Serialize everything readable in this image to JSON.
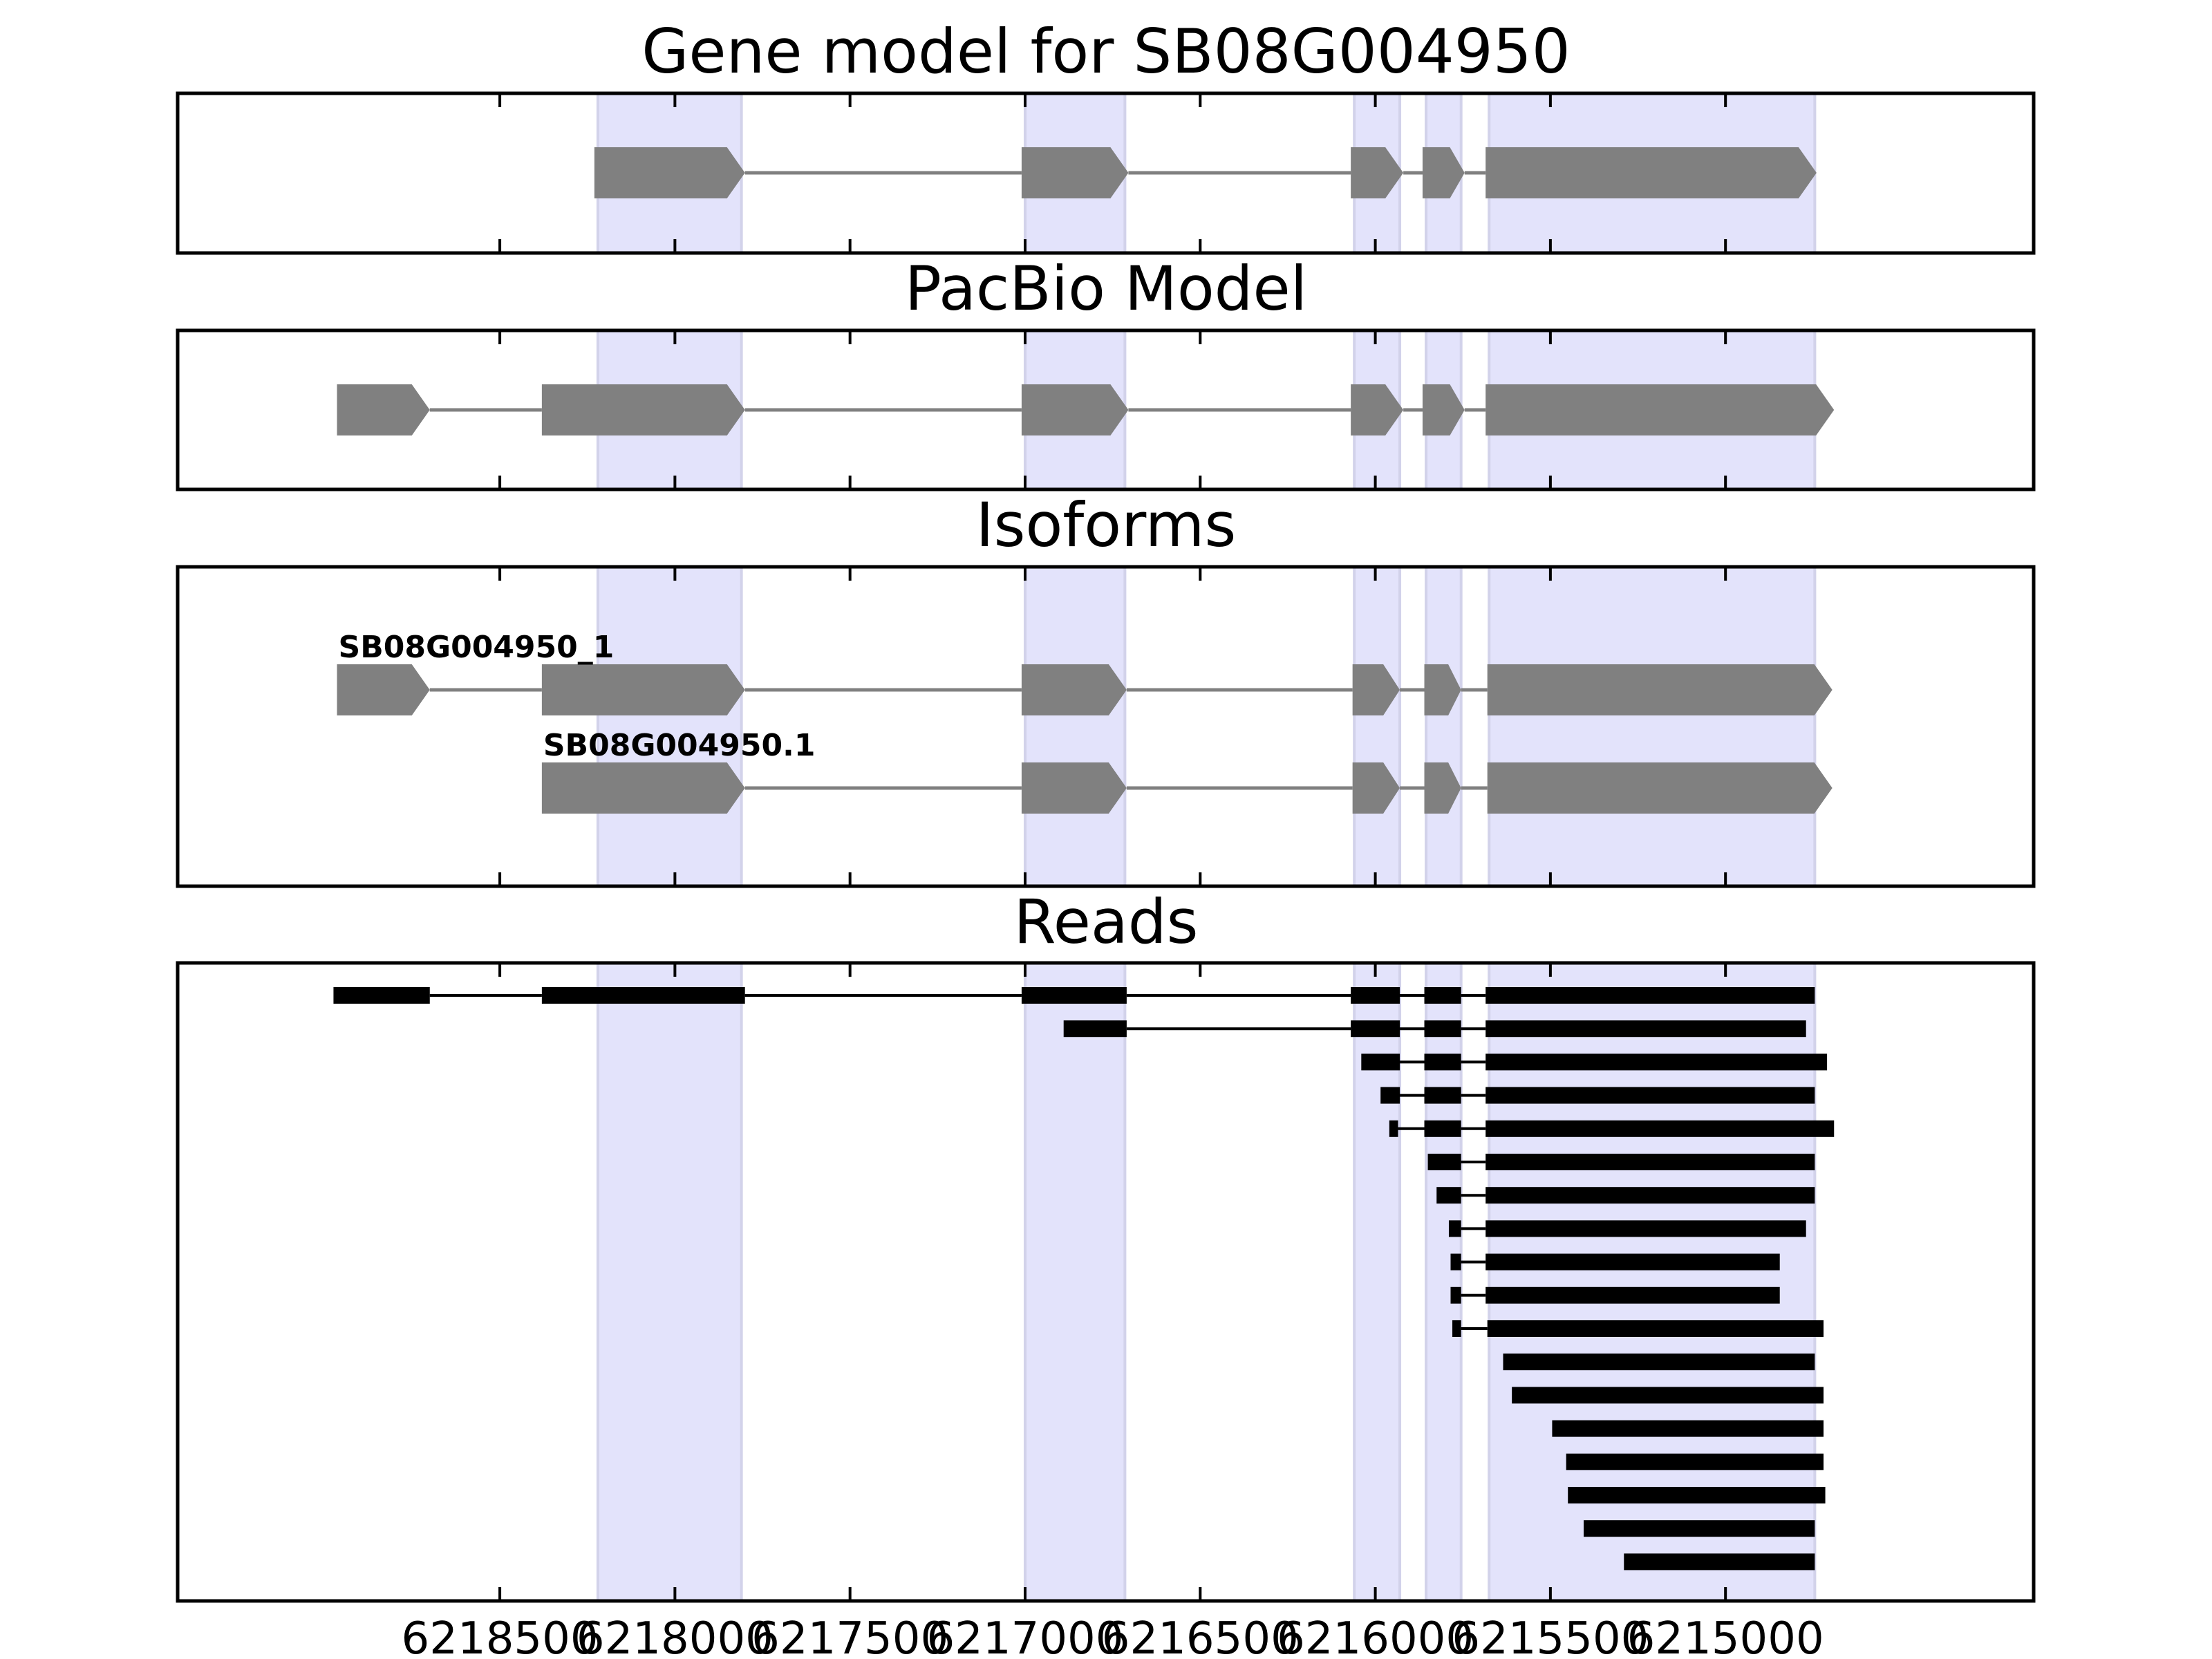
{
  "figure": {
    "colors": {
      "shade": "#e3e3fb",
      "shade_edge": "#d2d2ea",
      "feature": "#808080",
      "read": "#000000",
      "frame": "#000000"
    },
    "x_axis": {
      "range": [
        6219420,
        6214120
      ],
      "reversed": true,
      "ticks": [
        6218500,
        6218000,
        6217500,
        6217000,
        6216500,
        6216000,
        6215500,
        6215000
      ],
      "tick_labels": [
        "6218500",
        "6218000",
        "6217500",
        "6217000",
        "6216500",
        "6216000",
        "6215500",
        "6215000"
      ]
    },
    "shaded_exons": [
      [
        6218220,
        6217810
      ],
      [
        6217000,
        6216715
      ],
      [
        6216060,
        6215930
      ],
      [
        6215855,
        6215755
      ],
      [
        6215675,
        6214745
      ]
    ],
    "panels": [
      {
        "id": "gene-model",
        "title": "Gene model for SB08G004950",
        "style": "arrow",
        "transcripts": [
          {
            "label": "",
            "exons": [
              [
                6218230,
                6217800
              ],
              [
                6217010,
                6216705
              ],
              [
                6216070,
                6215920
              ],
              [
                6215865,
                6215745
              ],
              [
                6215685,
                6214740
              ]
            ]
          }
        ]
      },
      {
        "id": "pacbio-model",
        "title": "PacBio Model",
        "style": "arrow",
        "transcripts": [
          {
            "label": "",
            "exons": [
              [
                6218965,
                6218700
              ],
              [
                6218380,
                6217800
              ],
              [
                6217010,
                6216705
              ],
              [
                6216070,
                6215920
              ],
              [
                6215865,
                6215745
              ],
              [
                6215685,
                6214690
              ]
            ]
          }
        ]
      },
      {
        "id": "isoforms",
        "title": "Isoforms",
        "style": "arrow",
        "transcripts": [
          {
            "label": "SB08G004950_1",
            "exons": [
              [
                6218965,
                6218700
              ],
              [
                6218380,
                6217800
              ],
              [
                6217010,
                6216710
              ],
              [
                6216065,
                6215930
              ],
              [
                6215860,
                6215755
              ],
              [
                6215680,
                6214695
              ]
            ]
          },
          {
            "label": "SB08G004950.1",
            "exons": [
              [
                6218380,
                6217800
              ],
              [
                6217010,
                6216710
              ],
              [
                6216065,
                6215930
              ],
              [
                6215860,
                6215755
              ],
              [
                6215680,
                6214695
              ]
            ]
          }
        ]
      },
      {
        "id": "reads",
        "title": "Reads",
        "style": "bar",
        "transcripts": [
          {
            "label": "",
            "exons": [
              [
                6218975,
                6218700
              ],
              [
                6218380,
                6217800
              ],
              [
                6217010,
                6216710
              ],
              [
                6216070,
                6215930
              ],
              [
                6215860,
                6215755
              ],
              [
                6215685,
                6214745
              ]
            ]
          },
          {
            "label": "",
            "exons": [
              [
                6216890,
                6216710
              ],
              [
                6216070,
                6215930
              ],
              [
                6215860,
                6215755
              ],
              [
                6215685,
                6214770
              ]
            ]
          },
          {
            "label": "",
            "exons": [
              [
                6216040,
                6215930
              ],
              [
                6215860,
                6215755
              ],
              [
                6215685,
                6214710
              ]
            ]
          },
          {
            "label": "",
            "exons": [
              [
                6215985,
                6215930
              ],
              [
                6215860,
                6215755
              ],
              [
                6215685,
                6214745
              ]
            ]
          },
          {
            "label": "",
            "exons": [
              [
                6215960,
                6215935
              ],
              [
                6215860,
                6215755
              ],
              [
                6215685,
                6214690
              ]
            ]
          },
          {
            "label": "",
            "exons": [
              [
                6215850,
                6215755
              ],
              [
                6215685,
                6214745
              ]
            ]
          },
          {
            "label": "",
            "exons": [
              [
                6215825,
                6215755
              ],
              [
                6215685,
                6214745
              ]
            ]
          },
          {
            "label": "",
            "exons": [
              [
                6215790,
                6215755
              ],
              [
                6215685,
                6214770
              ]
            ]
          },
          {
            "label": "",
            "exons": [
              [
                6215785,
                6215755
              ],
              [
                6215685,
                6214845
              ]
            ]
          },
          {
            "label": "",
            "exons": [
              [
                6215785,
                6215755
              ],
              [
                6215685,
                6214845
              ]
            ]
          },
          {
            "label": "",
            "exons": [
              [
                6215780,
                6215755
              ],
              [
                6215680,
                6214720
              ]
            ]
          },
          {
            "label": "",
            "exons": [
              [
                6215635,
                6214745
              ]
            ]
          },
          {
            "label": "",
            "exons": [
              [
                6215610,
                6214720
              ]
            ]
          },
          {
            "label": "",
            "exons": [
              [
                6215495,
                6214720
              ]
            ]
          },
          {
            "label": "",
            "exons": [
              [
                6215455,
                6214720
              ]
            ]
          },
          {
            "label": "",
            "exons": [
              [
                6215450,
                6214715
              ]
            ]
          },
          {
            "label": "",
            "exons": [
              [
                6215405,
                6214745
              ]
            ]
          },
          {
            "label": "",
            "exons": [
              [
                6215290,
                6214745
              ]
            ]
          }
        ]
      }
    ]
  }
}
